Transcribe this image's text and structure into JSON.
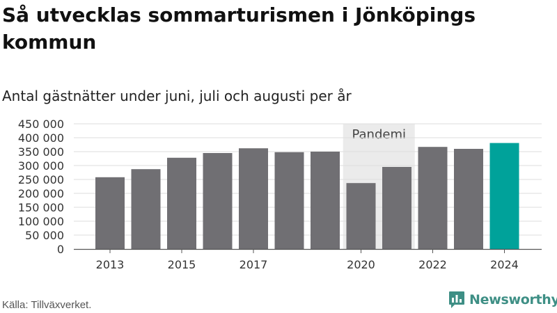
{
  "header": {
    "title": "Så utvecklas sommarturismen i Jönköpings kommun",
    "subtitle": "Antal gästnätter under juni, juli och augusti per år"
  },
  "footer": {
    "source": "Källa: Tillväxverket.",
    "brand_name": "Newsworthy"
  },
  "colors": {
    "bar": "#706f73",
    "highlight": "#00a29a",
    "shade": "#ebebeb",
    "grid": "#dddddd",
    "brand": "#3e8f85"
  },
  "chart_data": {
    "type": "bar",
    "categories": [
      "2013",
      "2014",
      "2015",
      "2016",
      "2017",
      "2018",
      "2019",
      "2020",
      "2021",
      "2022",
      "2023",
      "2024"
    ],
    "values": [
      258000,
      287000,
      328000,
      345000,
      362000,
      348000,
      350000,
      237000,
      295000,
      367000,
      360000,
      381000
    ],
    "x_tick_labels": [
      "2013",
      "",
      "2015",
      "",
      "2017",
      "",
      "",
      "2020",
      "",
      "2022",
      "",
      "2024"
    ],
    "y_ticks": [
      0,
      50000,
      100000,
      150000,
      200000,
      250000,
      300000,
      350000,
      400000,
      450000
    ],
    "y_tick_labels": [
      "0",
      "50 000",
      "100 000",
      "150 000",
      "200 000",
      "250 000",
      "300 000",
      "350 000",
      "400 000",
      "450 000"
    ],
    "ylim": [
      0,
      450000
    ],
    "highlight_category": "2024",
    "annotation": {
      "label": "Pandemi",
      "from_category": "2020",
      "to_category": "2021"
    },
    "grid": true,
    "legend": "none"
  }
}
